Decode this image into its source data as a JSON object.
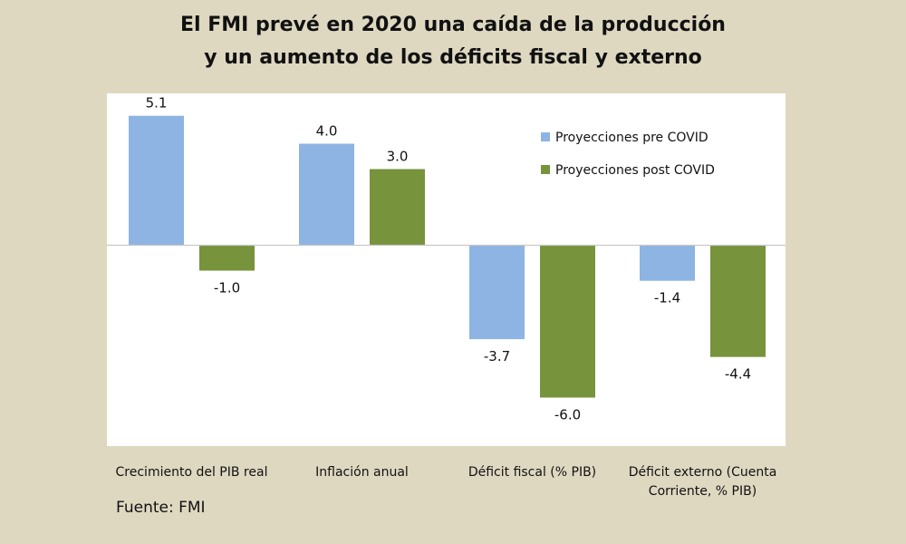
{
  "title_lines": [
    "El FMI prevé en 2020 una caída de la producción",
    "y un aumento de los déficits fiscal y externo"
  ],
  "source": "Fuente: FMI",
  "colors": {
    "background": "#ded8c1",
    "plot_area": "#ffffff",
    "pre_covid": "#8db4e2",
    "post_covid": "#77933c"
  },
  "chart_data": {
    "type": "bar",
    "title": "El FMI prevé en 2020 una caída de la producción y un aumento de los déficits fiscal y externo",
    "categories": [
      [
        "Crecimiento del PIB real"
      ],
      [
        "Inflación anual"
      ],
      [
        "Déficit fiscal (% PIB)"
      ],
      [
        "Déficit externo (Cuenta",
        "Corriente, % PIB)"
      ]
    ],
    "series": [
      {
        "name": "Proyecciones pre COVID",
        "values": [
          5.1,
          4.0,
          -3.7,
          -1.4
        ],
        "labels": [
          "5.1",
          "4.0",
          "-3.7",
          "-1.4"
        ]
      },
      {
        "name": "Proyecciones post COVID",
        "values": [
          -1.0,
          3.0,
          -6.0,
          -4.4
        ],
        "labels": [
          "-1.0",
          "3.0",
          "-6.0",
          "-4.4"
        ]
      }
    ],
    "ylim": [
      -6.0,
      5.1
    ],
    "grid": false,
    "legend_position": "top-right",
    "xlabel": "",
    "ylabel": ""
  }
}
